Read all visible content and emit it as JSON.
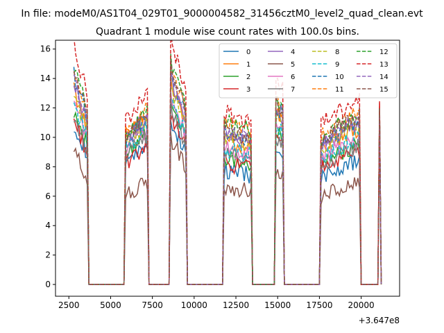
{
  "figure": {
    "suptitle": "In file: modeM0/AS1T04_029T01_9000004582_31456cztM0_level2_quad_clean.evt"
  },
  "chart_data": {
    "type": "line",
    "title": "Quadrant 1 module wise count rates with 100.0s bins.",
    "xlabel": "",
    "ylabel": "",
    "x_offset_label": "+3.647e8",
    "xlim": [
      1700,
      22300
    ],
    "ylim": [
      -0.8,
      16.6
    ],
    "xticks": [
      2500,
      5000,
      7500,
      10000,
      12500,
      15000,
      17500,
      20000
    ],
    "xtick_labels": [
      "2500",
      "5000",
      "7500",
      "10000",
      "12500",
      "15000",
      "17500",
      "20000"
    ],
    "yticks": [
      0,
      2,
      4,
      6,
      8,
      10,
      12,
      14,
      16
    ],
    "ytick_labels": [
      "0",
      "2",
      "4",
      "6",
      "8",
      "10",
      "12",
      "14",
      "16"
    ],
    "grid": false,
    "legend": {
      "location": "top-right",
      "columns": 4
    },
    "segments": [
      {
        "start": 2800,
        "end": 3600,
        "levels": [
          9.8,
          11.8,
          10.6,
          10.0,
          12.2,
          8.1,
          11.0,
          10.2,
          11.6,
          11.0,
          12.7,
          12.6,
          13.2,
          14.5,
          12.4,
          13.0
        ]
      },
      {
        "start": 5900,
        "end": 7200,
        "levels": [
          9.0,
          11.0,
          9.8,
          8.8,
          10.8,
          6.5,
          10.0,
          9.5,
          10.3,
          10.0,
          10.6,
          11.2,
          11.0,
          12.1,
          10.6,
          10.9
        ]
      },
      {
        "start": 8600,
        "end": 9500,
        "levels": [
          10.0,
          12.3,
          11.0,
          10.4,
          12.5,
          8.9,
          11.3,
          10.7,
          11.9,
          11.2,
          12.8,
          13.1,
          13.5,
          14.8,
          12.6,
          13.2
        ]
      },
      {
        "start": 11800,
        "end": 13400,
        "levels": [
          7.8,
          9.8,
          8.7,
          8.3,
          10.1,
          6.6,
          9.3,
          8.8,
          10.1,
          9.2,
          10.3,
          10.9,
          11.0,
          11.7,
          10.4,
          10.5
        ]
      },
      {
        "start": 14900,
        "end": 15300,
        "levels": [
          9.6,
          11.6,
          10.4,
          9.9,
          12.0,
          7.8,
          10.9,
          10.1,
          11.4,
          10.8,
          12.2,
          12.4,
          12.6,
          14.0,
          12.1,
          12.5
        ]
      },
      {
        "start": 17600,
        "end": 19900,
        "levels": [
          8.0,
          10.0,
          9.0,
          8.5,
          10.3,
          6.5,
          9.4,
          8.9,
          10.2,
          9.5,
          10.5,
          11.0,
          11.0,
          11.9,
          10.6,
          10.8
        ]
      },
      {
        "start": 21100,
        "end": 21150,
        "levels": [
          11.4,
          11.5,
          11.3,
          12.4,
          11.7,
          11.2,
          11.4,
          11.3,
          11.6,
          11.4,
          11.8,
          11.9,
          12.0,
          12.8,
          11.8,
          11.9
        ]
      }
    ],
    "series": [
      {
        "name": "0",
        "color": "#1f77b4",
        "dash": "solid"
      },
      {
        "name": "1",
        "color": "#ff7f0e",
        "dash": "solid"
      },
      {
        "name": "2",
        "color": "#2ca02c",
        "dash": "solid"
      },
      {
        "name": "3",
        "color": "#d62728",
        "dash": "solid"
      },
      {
        "name": "4",
        "color": "#9467bd",
        "dash": "solid"
      },
      {
        "name": "5",
        "color": "#8c564b",
        "dash": "solid"
      },
      {
        "name": "6",
        "color": "#e377c2",
        "dash": "solid"
      },
      {
        "name": "7",
        "color": "#7f7f7f",
        "dash": "solid"
      },
      {
        "name": "8",
        "color": "#bcbd22",
        "dash": "dashed"
      },
      {
        "name": "9",
        "color": "#17becf",
        "dash": "dashed"
      },
      {
        "name": "10",
        "color": "#1f77b4",
        "dash": "dashed"
      },
      {
        "name": "11",
        "color": "#ff7f0e",
        "dash": "dashed"
      },
      {
        "name": "12",
        "color": "#2ca02c",
        "dash": "dashed"
      },
      {
        "name": "13",
        "color": "#d62728",
        "dash": "dashed"
      },
      {
        "name": "14",
        "color": "#9467bd",
        "dash": "dashed"
      },
      {
        "name": "15",
        "color": "#8c564b",
        "dash": "dashed"
      }
    ]
  }
}
